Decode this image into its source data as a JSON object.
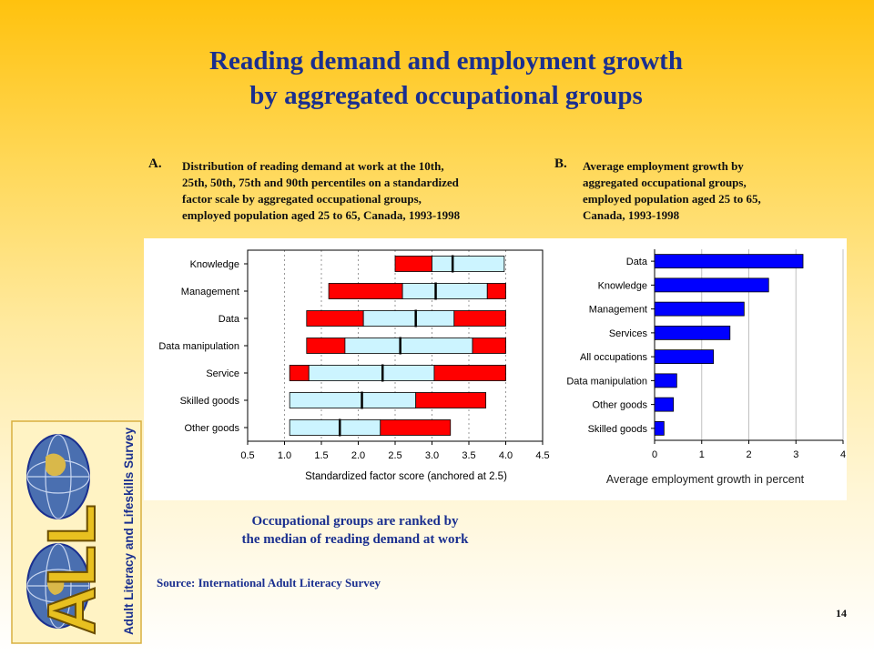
{
  "slide": {
    "title_line1": "Reading demand and employment growth",
    "title_line2": "by aggregated occupational groups",
    "panel_a_letter": "A.",
    "panel_a_desc": [
      "Distribution of reading demand at work at the 10th,",
      "25th, 50th, 75th and 90th percentiles on a standardized",
      "factor scale by aggregated occupational groups,",
      "employed population aged 25 to 65, Canada, 1993-1998"
    ],
    "panel_b_letter": "B.",
    "panel_b_desc": [
      "Average employment growth by",
      "aggregated occupational groups,",
      "employed population aged 25 to 65,",
      "Canada, 1993-1998"
    ],
    "note_line1": "Occupational groups are ranked by",
    "note_line2": "the median of reading demand at work",
    "source": "Source: International Adult Literacy Survey",
    "page_number": "14",
    "logo_text": "Adult Literacy and Lifeskills Survey",
    "logo_letters": "ALL"
  },
  "colors": {
    "title": "#1a2f8f",
    "outer_band": "#ff0000",
    "inner_band": "#ccf4ff",
    "growth_bar": "#0000ff"
  },
  "chart_data": [
    {
      "type": "box",
      "categories": [
        "Knowledge",
        "Management",
        "Data",
        "Data manipulation",
        "Service",
        "Skilled goods",
        "Other goods"
      ],
      "series": [
        {
          "name": "p10",
          "values": [
            2.5,
            1.6,
            1.3,
            1.3,
            1.07,
            1.07,
            1.07
          ]
        },
        {
          "name": "p25",
          "values": [
            3.0,
            2.6,
            2.07,
            1.82,
            1.33,
            1.07,
            1.07
          ]
        },
        {
          "name": "p50",
          "values": [
            3.28,
            3.05,
            2.78,
            2.57,
            2.33,
            2.05,
            1.75
          ]
        },
        {
          "name": "p75",
          "values": [
            3.98,
            3.75,
            3.3,
            3.55,
            3.03,
            2.78,
            2.3
          ]
        },
        {
          "name": "p90",
          "values": [
            3.98,
            4.0,
            4.0,
            4.0,
            4.0,
            3.73,
            3.25
          ]
        }
      ],
      "xlabel": "Standardized factor score (anchored at 2.5)",
      "xlim": [
        0.5,
        4.5
      ],
      "xticks": [
        "0.5",
        "1.0",
        "1.5",
        "2.0",
        "2.5",
        "3.0",
        "3.5",
        "4.0",
        "4.5"
      ],
      "grid": true
    },
    {
      "type": "bar",
      "orientation": "horizontal",
      "categories": [
        "Data",
        "Knowledge",
        "Management",
        "Services",
        "All occupations",
        "Data manipulation",
        "Other goods",
        "Skilled goods"
      ],
      "values": [
        3.15,
        2.42,
        1.9,
        1.6,
        1.25,
        0.47,
        0.4,
        0.2
      ],
      "xlabel": "Average employment growth in percent",
      "xlim": [
        0,
        4
      ],
      "xticks": [
        "0",
        "1",
        "2",
        "3",
        "4"
      ],
      "grid": true
    }
  ]
}
